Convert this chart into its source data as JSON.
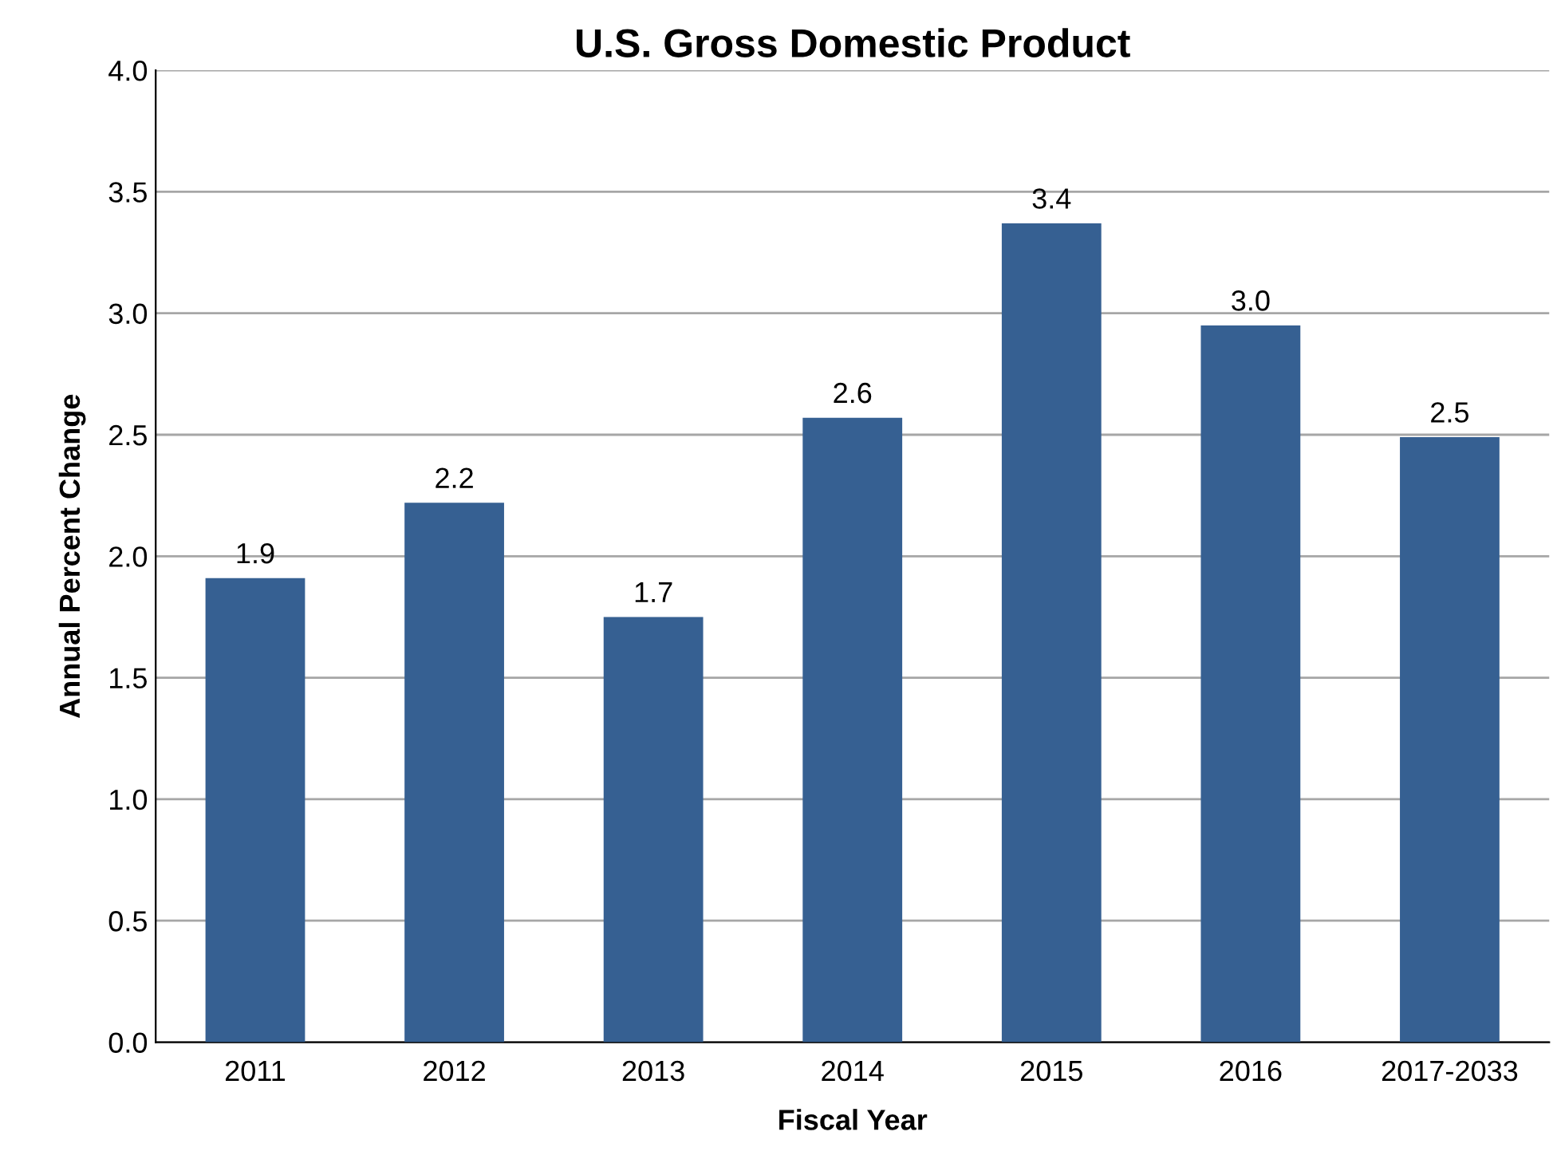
{
  "chart_data": {
    "type": "bar",
    "title": "U.S. Gross Domestic Product",
    "xlabel": "Fiscal Year",
    "ylabel": "Annual Percent Change",
    "categories": [
      "2011",
      "2012",
      "2013",
      "2014",
      "2015",
      "2016",
      "2017-2033"
    ],
    "values": [
      1.91,
      2.22,
      1.75,
      2.57,
      3.37,
      2.95,
      2.49
    ],
    "value_labels": [
      "1.9",
      "2.2",
      "1.7",
      "2.6",
      "3.4",
      "3.0",
      "2.5"
    ],
    "color": "#366092",
    "ylim": [
      0,
      4.0
    ],
    "yticks": [
      {
        "value": 0,
        "label": "0.0"
      },
      {
        "value": 0.5,
        "label": "0.5"
      },
      {
        "value": 1.0,
        "label": "1.0"
      },
      {
        "value": 1.5,
        "label": "1.5"
      },
      {
        "value": 2.0,
        "label": "2.0"
      },
      {
        "value": 2.5,
        "label": "2.5"
      },
      {
        "value": 3.0,
        "label": "3.0"
      },
      {
        "value": 3.5,
        "label": "3.5"
      },
      {
        "value": 4.0,
        "label": "4.0"
      }
    ],
    "grid": "y"
  }
}
